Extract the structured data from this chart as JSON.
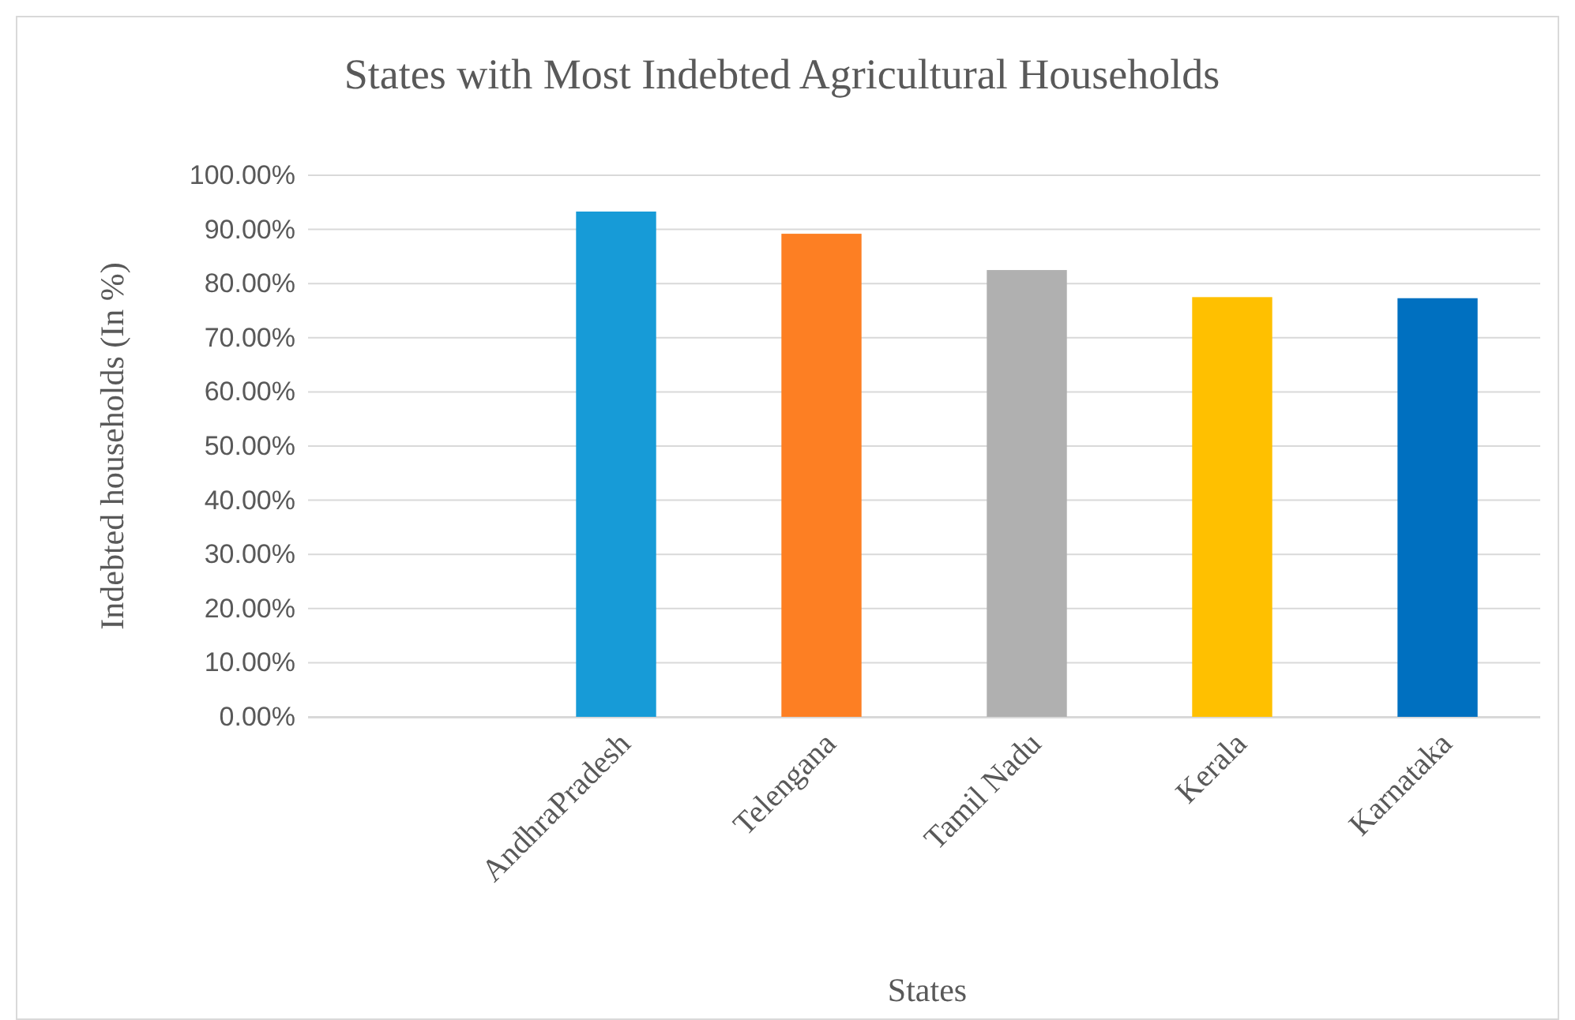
{
  "chart_data": {
    "type": "bar",
    "title": "States with Most Indebted Agricultural Households",
    "xlabel": "States",
    "ylabel": "Indebted households (In %)",
    "categories": [
      null,
      "AndhraPradesh",
      "Telengana",
      "Tamil Nadu",
      "Kerala",
      "Karnataka"
    ],
    "values": [
      null,
      93.3,
      89.2,
      82.5,
      77.5,
      77.3
    ],
    "colors": [
      null,
      "#179bd7",
      "#fd7f23",
      "#b0b0b0",
      "#ffc000",
      "#0070c0"
    ],
    "ylim": [
      0,
      100
    ],
    "yticks": [
      {
        "value": 0,
        "label": "0.00%"
      },
      {
        "value": 10,
        "label": "10.00%"
      },
      {
        "value": 20,
        "label": "20.00%"
      },
      {
        "value": 30,
        "label": "30.00%"
      },
      {
        "value": 40,
        "label": "40.00%"
      },
      {
        "value": 50,
        "label": "50.00%"
      },
      {
        "value": 60,
        "label": "60.00%"
      },
      {
        "value": 70,
        "label": "70.00%"
      },
      {
        "value": 80,
        "label": "80.00%"
      },
      {
        "value": 90,
        "label": "90.00%"
      },
      {
        "value": 100,
        "label": "100.00%"
      }
    ],
    "grid": "y"
  }
}
